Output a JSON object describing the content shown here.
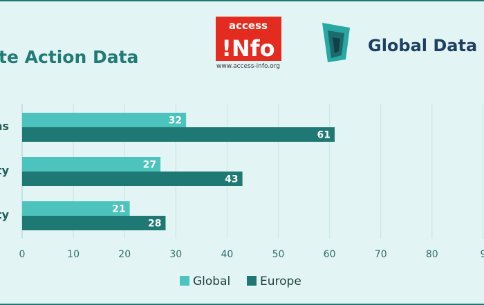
{
  "header": {
    "title": "te Action Data",
    "access_info_logo": {
      "top": "access",
      "main": "!Nfo",
      "url": "www.access-info.org",
      "color": "#e42b20"
    },
    "global_data_barometer_logo": {
      "text": "Global Data Baro",
      "color": "#1c3f63"
    }
  },
  "chart_data": {
    "type": "bar",
    "orientation": "horizontal",
    "categories": [
      "ns",
      "ty",
      "ty"
    ],
    "series": [
      {
        "name": "Global",
        "values": [
          32,
          27,
          21
        ],
        "color": "#4cc3bd"
      },
      {
        "name": "Europe",
        "values": [
          61,
          43,
          28
        ],
        "color": "#1e7873"
      }
    ],
    "x_ticks": [
      "0",
      "10",
      "20",
      "30",
      "40",
      "50",
      "60",
      "70",
      "80",
      "9"
    ],
    "xlim": [
      0,
      90
    ],
    "grid": true,
    "legend_position": "bottom"
  }
}
